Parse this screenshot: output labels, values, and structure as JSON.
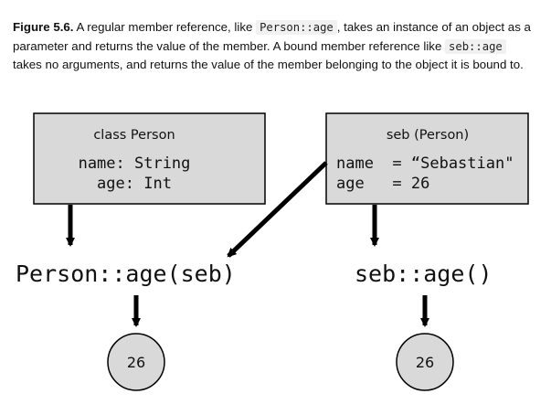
{
  "caption": {
    "figure_label": "Figure 5.6.",
    "part1": " A regular member reference, like ",
    "code1": "Person::age",
    "part2": ", takes an instance of an object as a parameter and returns the value of the member. A bound member reference like ",
    "code2": "seb::age",
    "part3": " takes no arguments, and returns the value of the member belonging to the object it is bound to."
  },
  "diagram": {
    "class_box": {
      "title": "class Person",
      "line1": "name: String",
      "line2": "age: Int"
    },
    "instance_box": {
      "title": "seb (Person)",
      "line1": "name  = “Sebastian\"",
      "line2": "age   = 26"
    },
    "left_expression": "Person::age(seb)",
    "right_expression": "seb::age()",
    "left_result": "26",
    "right_result": "26"
  },
  "colors": {
    "box_fill": "#d9d9d9",
    "stroke": "#000000",
    "circle_fill": "#d9d9d9"
  }
}
